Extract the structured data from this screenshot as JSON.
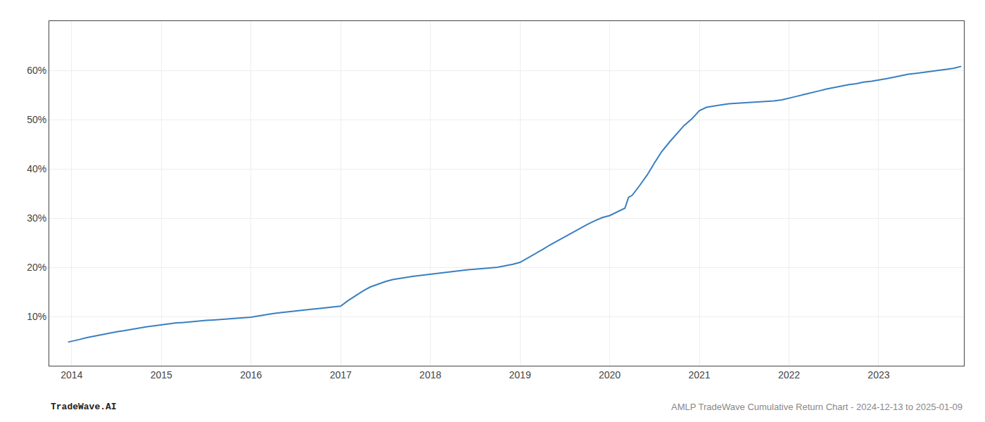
{
  "chart_data": {
    "type": "line",
    "x": [
      2013.96,
      2014.0,
      2014.08,
      2014.17,
      2014.25,
      2014.33,
      2014.42,
      2014.5,
      2014.58,
      2014.67,
      2014.75,
      2014.83,
      2014.92,
      2015.0,
      2015.08,
      2015.17,
      2015.25,
      2015.33,
      2015.42,
      2015.5,
      2015.58,
      2015.67,
      2015.75,
      2015.83,
      2015.92,
      2016.0,
      2016.08,
      2016.17,
      2016.25,
      2016.33,
      2016.42,
      2016.5,
      2016.58,
      2016.67,
      2016.75,
      2016.83,
      2016.92,
      2017.0,
      2017.08,
      2017.17,
      2017.25,
      2017.33,
      2017.42,
      2017.5,
      2017.58,
      2017.67,
      2017.75,
      2017.83,
      2017.92,
      2018.0,
      2018.08,
      2018.17,
      2018.25,
      2018.33,
      2018.42,
      2018.5,
      2018.58,
      2018.67,
      2018.75,
      2018.83,
      2018.92,
      2019.0,
      2019.08,
      2019.17,
      2019.25,
      2019.33,
      2019.42,
      2019.5,
      2019.58,
      2019.67,
      2019.75,
      2019.83,
      2019.92,
      2020.0,
      2020.08,
      2020.17,
      2020.21,
      2020.25,
      2020.33,
      2020.42,
      2020.5,
      2020.58,
      2020.67,
      2020.75,
      2020.83,
      2020.92,
      2021.0,
      2021.08,
      2021.17,
      2021.25,
      2021.33,
      2021.42,
      2021.5,
      2021.58,
      2021.67,
      2021.75,
      2021.83,
      2021.92,
      2022.0,
      2022.08,
      2022.17,
      2022.25,
      2022.33,
      2022.42,
      2022.5,
      2022.58,
      2022.67,
      2022.75,
      2022.83,
      2022.92,
      2023.0,
      2023.08,
      2023.17,
      2023.25,
      2023.33,
      2023.42,
      2023.5,
      2023.58,
      2023.67,
      2023.75,
      2023.83,
      2023.92
    ],
    "values": [
      4.8,
      5.0,
      5.3,
      5.7,
      6.0,
      6.3,
      6.6,
      6.9,
      7.1,
      7.4,
      7.6,
      7.9,
      8.1,
      8.3,
      8.5,
      8.7,
      8.8,
      8.95,
      9.1,
      9.2,
      9.3,
      9.4,
      9.5,
      9.6,
      9.7,
      9.85,
      10.1,
      10.4,
      10.6,
      10.8,
      11.0,
      11.15,
      11.3,
      11.45,
      11.6,
      11.75,
      11.9,
      12.1,
      13.2,
      14.3,
      15.2,
      16.0,
      16.6,
      17.1,
      17.5,
      17.8,
      18.0,
      18.2,
      18.4,
      18.6,
      18.8,
      19.0,
      19.2,
      19.4,
      19.5,
      19.6,
      19.7,
      19.8,
      20.0,
      20.3,
      20.6,
      21.0,
      21.8,
      22.7,
      23.6,
      24.5,
      25.4,
      26.3,
      27.1,
      27.9,
      28.7,
      29.4,
      30.1,
      30.5,
      31.2,
      32.0,
      34.2,
      34.6,
      36.5,
      38.8,
      41.2,
      43.5,
      45.5,
      47.2,
      48.8,
      50.2,
      51.8,
      52.5,
      52.8,
      53.0,
      53.2,
      53.3,
      53.4,
      53.5,
      53.6,
      53.7,
      53.8,
      54.0,
      54.3,
      54.7,
      55.1,
      55.5,
      55.8,
      56.2,
      56.5,
      56.8,
      57.1,
      57.3,
      57.6,
      57.8,
      58.0,
      58.3,
      58.6,
      58.9,
      59.2,
      59.4,
      59.6,
      59.8,
      60.0,
      60.2,
      60.4,
      60.8
    ],
    "color": "#3a7fc1",
    "xlim": [
      2013.75,
      2023.95
    ],
    "xticks": [
      2014,
      2015,
      2016,
      2017,
      2018,
      2019,
      2020,
      2021,
      2022,
      2023
    ],
    "ylim": [
      0,
      70
    ],
    "yticks": [
      {
        "value": 10,
        "label": "10%"
      },
      {
        "value": 20,
        "label": "20%"
      },
      {
        "value": 30,
        "label": "30%"
      },
      {
        "value": 40,
        "label": "40%"
      },
      {
        "value": 50,
        "label": "50%"
      },
      {
        "value": 60,
        "label": "60%"
      }
    ],
    "grid": true,
    "annotations": [
      "TradeWave.AI",
      "AMLP TradeWave Cumulative Return Chart - 2024-12-13 to 2025-01-09"
    ]
  }
}
